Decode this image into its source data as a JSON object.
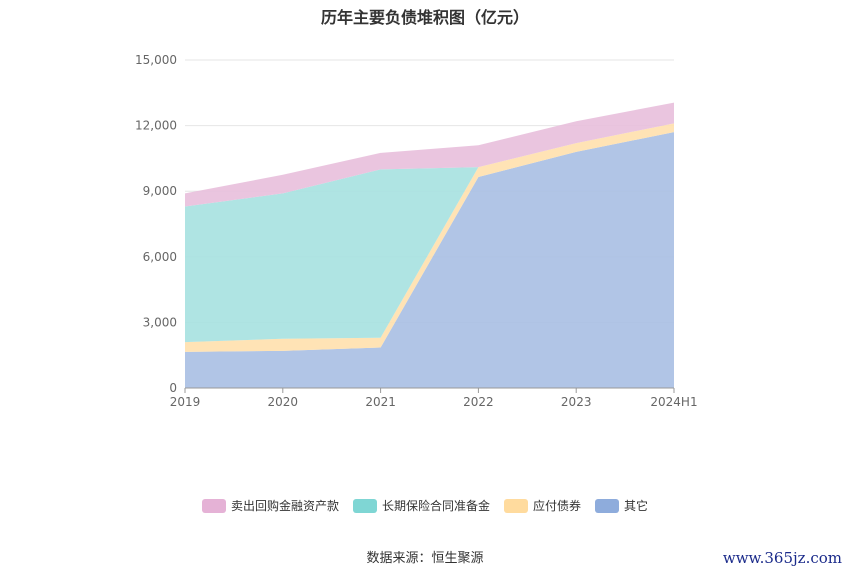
{
  "title": "历年主要负债堆积图（亿元）",
  "source": "数据来源：恒生聚源",
  "watermark": "www.365jz.com",
  "colors": {
    "repo": "#e8bfdc",
    "longterm": "#a6e1e0",
    "bonds": "#ffe0ad",
    "other": "#a9bfe3",
    "repo_swatch": "#e5b2d6",
    "longterm_swatch": "#7fd6d4",
    "bonds_swatch": "#ffdb9e",
    "other_swatch": "#8eacdc"
  },
  "chart_data": {
    "type": "area",
    "stacked": true,
    "title": "历年主要负债堆积图（亿元）",
    "categories": [
      "2019",
      "2020",
      "2021",
      "2022",
      "2023",
      "2024H1"
    ],
    "ylim": [
      0,
      15000
    ],
    "yticks": [
      "0",
      "3,000",
      "6,000",
      "9,000",
      "12,000",
      "15,000"
    ],
    "ytick_values": [
      0,
      3000,
      6000,
      9000,
      12000,
      15000
    ],
    "grid": true,
    "legend_position": "bottom",
    "series": [
      {
        "name": "其它",
        "key": "other",
        "values": [
          1650,
          1700,
          1850,
          9650,
          10800,
          11700
        ]
      },
      {
        "name": "应付债券",
        "key": "bonds",
        "values": [
          450,
          550,
          450,
          450,
          400,
          400
        ]
      },
      {
        "name": "长期保险合同准备金",
        "key": "longterm",
        "values": [
          6200,
          6650,
          7700,
          0,
          0,
          0
        ]
      },
      {
        "name": "卖出回购金融资产款",
        "key": "repo",
        "values": [
          600,
          850,
          750,
          1000,
          1000,
          950
        ]
      }
    ],
    "legend": [
      "卖出回购金融资产款",
      "长期保险合同准备金",
      "应付债券",
      "其它"
    ]
  }
}
